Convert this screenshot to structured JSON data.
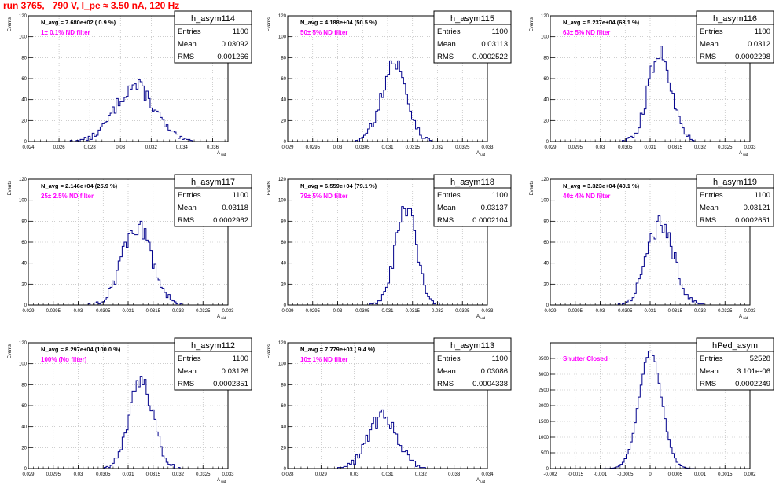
{
  "title": "run 3765,   790 V, I_pe ≈ 3.50 nA, 120 Hz",
  "chart_data": [
    {
      "type": "bar",
      "hist_name": "h_asym114",
      "stats": {
        "entries": "1100",
        "mean": "0.03092",
        "rms": "0.001266"
      },
      "stats_labels": [
        "Entries",
        "Mean",
        "RMS"
      ],
      "navg_text": "N_avg = 7.680e+02 ( 0.9 %)",
      "filter_text": "1± 0.1% ND filter",
      "ylabel": "Events",
      "xlabel": "A_uid",
      "xlim": [
        0.024,
        0.037
      ],
      "ylim": [
        0,
        120
      ],
      "xticks": [
        "0.024",
        "0.026",
        "0.028",
        "0.03",
        "0.032",
        "0.034",
        "0.036"
      ],
      "xtick_values": [
        0.024,
        0.026,
        0.028,
        0.03,
        0.032,
        0.034,
        0.036
      ],
      "yticks": [
        "0",
        "20",
        "40",
        "60",
        "80",
        "100",
        "120"
      ],
      "ytick_values": [
        0,
        20,
        40,
        60,
        80,
        100,
        120
      ],
      "mean": 0.03092,
      "rms": 0.001266,
      "peak": 53,
      "grid": true
    },
    {
      "type": "bar",
      "hist_name": "h_asym115",
      "stats": {
        "entries": "1100",
        "mean": "0.03113",
        "rms": "0.0002522"
      },
      "stats_labels": [
        "Entries",
        "Mean",
        "RMS"
      ],
      "navg_text": "N_avg = 4.188e+04 (50.5 %)",
      "filter_text": "50± 5% ND filter",
      "ylabel": "Events",
      "xlabel": "A_uid",
      "xlim": [
        0.029,
        0.033
      ],
      "ylim": [
        0,
        120
      ],
      "xticks": [
        "0.029",
        "0.0295",
        "0.03",
        "0.0305",
        "0.031",
        "0.0315",
        "0.032",
        "0.0325",
        "0.033"
      ],
      "xtick_values": [
        0.029,
        0.0295,
        0.03,
        0.0305,
        0.031,
        0.0315,
        0.032,
        0.0325,
        0.033
      ],
      "yticks": [
        "0",
        "20",
        "40",
        "60",
        "80",
        "100",
        "120"
      ],
      "ytick_values": [
        0,
        20,
        40,
        60,
        80,
        100,
        120
      ],
      "mean": 0.03113,
      "rms": 0.0002522,
      "peak": 75,
      "grid": true
    },
    {
      "type": "bar",
      "hist_name": "h_asym116",
      "stats": {
        "entries": "1100",
        "mean": "0.0312",
        "rms": "0.0002298"
      },
      "stats_labels": [
        "Entries",
        "Mean",
        "RMS"
      ],
      "navg_text": "N_avg = 5.237e+04 (63.1 %)",
      "filter_text": "63± 5% ND filter",
      "ylabel": "Events",
      "xlabel": "A_uid",
      "xlim": [
        0.029,
        0.033
      ],
      "ylim": [
        0,
        120
      ],
      "xticks": [
        "0.029",
        "0.0295",
        "0.03",
        "0.0305",
        "0.031",
        "0.0315",
        "0.032",
        "0.0325",
        "0.033"
      ],
      "xtick_values": [
        0.029,
        0.0295,
        0.03,
        0.0305,
        0.031,
        0.0315,
        0.032,
        0.0325,
        0.033
      ],
      "yticks": [
        "0",
        "20",
        "40",
        "60",
        "80",
        "100",
        "120"
      ],
      "ytick_values": [
        0,
        20,
        40,
        60,
        80,
        100,
        120
      ],
      "mean": 0.0312,
      "rms": 0.0002298,
      "peak": 87,
      "grid": true
    },
    {
      "type": "bar",
      "hist_name": "h_asym117",
      "stats": {
        "entries": "1100",
        "mean": "0.03118",
        "rms": "0.0002962"
      },
      "stats_labels": [
        "Entries",
        "Mean",
        "RMS"
      ],
      "navg_text": "N_avg = 2.146e+04 (25.9 %)",
      "filter_text": "25± 2.5% ND filter",
      "ylabel": "Events",
      "xlabel": "A_uid",
      "xlim": [
        0.029,
        0.033
      ],
      "ylim": [
        0,
        120
      ],
      "xticks": [
        "0.029",
        "0.0295",
        "0.03",
        "0.0305",
        "0.031",
        "0.0315",
        "0.032",
        "0.0325",
        "0.033"
      ],
      "xtick_values": [
        0.029,
        0.0295,
        0.03,
        0.0305,
        0.031,
        0.0315,
        0.032,
        0.0325,
        0.033
      ],
      "yticks": [
        "0",
        "20",
        "40",
        "60",
        "80",
        "100",
        "120"
      ],
      "ytick_values": [
        0,
        20,
        40,
        60,
        80,
        100,
        120
      ],
      "mean": 0.03118,
      "rms": 0.0002962,
      "peak": 76,
      "grid": true
    },
    {
      "type": "bar",
      "hist_name": "h_asym118",
      "stats": {
        "entries": "1100",
        "mean": "0.03137",
        "rms": "0.0002104"
      },
      "stats_labels": [
        "Entries",
        "Mean",
        "RMS"
      ],
      "navg_text": "N_avg = 6.559e+04 (79.1 %)",
      "filter_text": "79± 5% ND filter",
      "ylabel": "Events",
      "xlabel": "A_uid",
      "xlim": [
        0.029,
        0.033
      ],
      "ylim": [
        0,
        120
      ],
      "xticks": [
        "0.029",
        "0.0295",
        "0.03",
        "0.0305",
        "0.031",
        "0.0315",
        "0.032",
        "0.0325",
        "0.033"
      ],
      "xtick_values": [
        0.029,
        0.0295,
        0.03,
        0.0305,
        0.031,
        0.0315,
        0.032,
        0.0325,
        0.033
      ],
      "yticks": [
        "0",
        "20",
        "40",
        "60",
        "80",
        "100",
        "120"
      ],
      "ytick_values": [
        0,
        20,
        40,
        60,
        80,
        100,
        120
      ],
      "mean": 0.03137,
      "rms": 0.0002104,
      "peak": 92,
      "grid": true
    },
    {
      "type": "bar",
      "hist_name": "h_asym119",
      "stats": {
        "entries": "1100",
        "mean": "0.03121",
        "rms": "0.0002651"
      },
      "stats_labels": [
        "Entries",
        "Mean",
        "RMS"
      ],
      "navg_text": "N_avg = 3.323e+04 (40.1 %)",
      "filter_text": "40± 4% ND filter",
      "ylabel": "Events",
      "xlabel": "A_uid",
      "xlim": [
        0.029,
        0.033
      ],
      "ylim": [
        0,
        120
      ],
      "xticks": [
        "0.029",
        "0.0295",
        "0.03",
        "0.0305",
        "0.031",
        "0.0315",
        "0.032",
        "0.0325",
        "0.033"
      ],
      "xtick_values": [
        0.029,
        0.0295,
        0.03,
        0.0305,
        0.031,
        0.0315,
        0.032,
        0.0325,
        0.033
      ],
      "yticks": [
        "0",
        "20",
        "40",
        "60",
        "80",
        "100",
        "120"
      ],
      "ytick_values": [
        0,
        20,
        40,
        60,
        80,
        100,
        120
      ],
      "mean": 0.03121,
      "rms": 0.0002651,
      "peak": 79,
      "grid": true
    },
    {
      "type": "bar",
      "hist_name": "h_asym112",
      "stats": {
        "entries": "1100",
        "mean": "0.03126",
        "rms": "0.0002351"
      },
      "stats_labels": [
        "Entries",
        "Mean",
        "RMS"
      ],
      "navg_text": "N_avg = 8.297e+04 (100.0 %)",
      "filter_text": "100% (No filter)",
      "ylabel": "Events",
      "xlabel": "A_uid",
      "xlim": [
        0.029,
        0.033
      ],
      "ylim": [
        0,
        120
      ],
      "xticks": [
        "0.029",
        "0.0295",
        "0.03",
        "0.0305",
        "0.031",
        "0.0315",
        "0.032",
        "0.0325",
        "0.033"
      ],
      "xtick_values": [
        0.029,
        0.0295,
        0.03,
        0.0305,
        0.031,
        0.0315,
        0.032,
        0.0325,
        0.033
      ],
      "yticks": [
        "0",
        "20",
        "40",
        "60",
        "80",
        "100",
        "120"
      ],
      "ytick_values": [
        0,
        20,
        40,
        60,
        80,
        100,
        120
      ],
      "mean": 0.03126,
      "rms": 0.0002351,
      "peak": 84,
      "grid": true
    },
    {
      "type": "bar",
      "hist_name": "h_asym113",
      "stats": {
        "entries": "1100",
        "mean": "0.03086",
        "rms": "0.0004338"
      },
      "stats_labels": [
        "Entries",
        "Mean",
        "RMS"
      ],
      "navg_text": "N_avg = 7.779e+03 ( 9.4 %)",
      "filter_text": "10± 1% ND filter",
      "ylabel": "Events",
      "xlabel": "A_uid",
      "xlim": [
        0.028,
        0.034
      ],
      "ylim": [
        0,
        120
      ],
      "xticks": [
        "0.028",
        "0.029",
        "0.03",
        "0.031",
        "0.032",
        "0.033",
        "0.034"
      ],
      "xtick_values": [
        0.028,
        0.029,
        0.03,
        0.031,
        0.032,
        0.033,
        0.034
      ],
      "yticks": [
        "0",
        "20",
        "40",
        "60",
        "80",
        "100",
        "120"
      ],
      "ytick_values": [
        0,
        20,
        40,
        60,
        80,
        100,
        120
      ],
      "mean": 0.03086,
      "rms": 0.0004338,
      "peak": 50,
      "grid": true
    },
    {
      "type": "bar",
      "hist_name": "hPed_asym",
      "stats": {
        "entries": "52528",
        "mean": "3.101e-06",
        "rms": "0.0002249"
      },
      "stats_labels": [
        "Entries",
        "Mean",
        "RMS"
      ],
      "navg_text": "",
      "filter_text": "Shutter Closed",
      "ylabel": "",
      "xlabel": "",
      "xlim": [
        -0.002,
        0.002
      ],
      "ylim": [
        0,
        4000
      ],
      "xticks": [
        "-0.002",
        "-0.0015",
        "-0.001",
        "-0.0005",
        "0",
        "0.0005",
        "0.001",
        "0.0015",
        "0.002"
      ],
      "xtick_values": [
        -0.002,
        -0.0015,
        -0.001,
        -0.0005,
        0,
        0.0005,
        0.001,
        0.0015,
        0.002
      ],
      "yticks": [
        "0",
        "500",
        "1000",
        "1500",
        "2000",
        "2500",
        "3000",
        "3500"
      ],
      "ytick_values": [
        0,
        500,
        1000,
        1500,
        2000,
        2500,
        3000,
        3500
      ],
      "mean": 3.101e-06,
      "rms": 0.0002249,
      "peak": 3700,
      "grid": true
    }
  ],
  "colors": {
    "title": "#ff0000",
    "filter_text": "#ff00ff",
    "histogram": "#00008b",
    "grid": "#b0b0b0",
    "frame": "#000000"
  }
}
